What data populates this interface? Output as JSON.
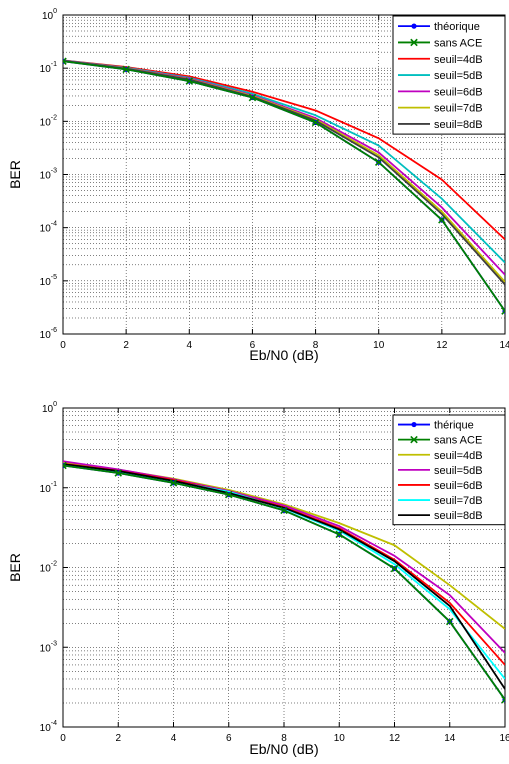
{
  "chart_data": [
    {
      "type": "line",
      "xlabel": "Eb/N0 (dB)",
      "ylabel": "BER",
      "xlim": [
        0,
        14
      ],
      "ylim": [
        1e-06,
        1
      ],
      "yscale": "log",
      "grid": true,
      "legend_position": "top-right",
      "x_ticks": [
        "0",
        "2",
        "4",
        "6",
        "8",
        "10",
        "12",
        "14"
      ],
      "y_ticks": [
        {
          "base": "10",
          "exp": "-6"
        },
        {
          "base": "10",
          "exp": "-5"
        },
        {
          "base": "10",
          "exp": "-4"
        },
        {
          "base": "10",
          "exp": "-3"
        },
        {
          "base": "10",
          "exp": "-2"
        },
        {
          "base": "10",
          "exp": "-1"
        },
        {
          "base": "10",
          "exp": "0"
        }
      ],
      "x": [
        0,
        2,
        4,
        6,
        8,
        10,
        12,
        14
      ],
      "series": [
        {
          "name": "théorique",
          "color": "#0000ff",
          "marker": "dot",
          "values": [
            0.135,
            0.095,
            0.057,
            0.028,
            0.0095,
            0.0017,
            0.00014,
            2.7e-06
          ]
        },
        {
          "name": "sans ACE",
          "color": "#008000",
          "marker": "x",
          "values": [
            0.135,
            0.095,
            0.057,
            0.028,
            0.0095,
            0.0017,
            0.00014,
            2.7e-06
          ]
        },
        {
          "name": "seuil=4dB",
          "color": "#ff0000",
          "marker": "none",
          "values": [
            0.14,
            0.105,
            0.07,
            0.036,
            0.016,
            0.0048,
            0.0008,
            6e-05
          ]
        },
        {
          "name": "seuil=5dB",
          "color": "#00bfbf",
          "marker": "none",
          "values": [
            0.14,
            0.102,
            0.066,
            0.033,
            0.013,
            0.0035,
            0.00035,
            2.2e-05
          ]
        },
        {
          "name": "seuil=6dB",
          "color": "#bf00bf",
          "marker": "none",
          "values": [
            0.139,
            0.1,
            0.064,
            0.031,
            0.0115,
            0.0026,
            0.00024,
            1.3e-05
          ]
        },
        {
          "name": "seuil=7dB",
          "color": "#bfbf00",
          "marker": "none",
          "values": [
            0.138,
            0.099,
            0.062,
            0.03,
            0.0108,
            0.0023,
            0.0002,
            9.5e-06
          ]
        },
        {
          "name": "seuil=8dB",
          "color": "#404040",
          "marker": "none",
          "values": [
            0.138,
            0.098,
            0.061,
            0.029,
            0.0103,
            0.0021,
            0.00018,
            8.5e-06
          ]
        }
      ]
    },
    {
      "type": "line",
      "xlabel": "Eb/N0 (dB)",
      "ylabel": "BER",
      "xlim": [
        0,
        16
      ],
      "ylim": [
        0.0001,
        1
      ],
      "yscale": "log",
      "grid": true,
      "legend_position": "top-right",
      "x_ticks": [
        "0",
        "2",
        "4",
        "6",
        "8",
        "10",
        "12",
        "14",
        "16"
      ],
      "y_ticks": [
        {
          "base": "10",
          "exp": "-4"
        },
        {
          "base": "10",
          "exp": "-3"
        },
        {
          "base": "10",
          "exp": "-2"
        },
        {
          "base": "10",
          "exp": "-1"
        },
        {
          "base": "10",
          "exp": "0"
        }
      ],
      "x": [
        0,
        2,
        4,
        6,
        8,
        10,
        12,
        14,
        16
      ],
      "series": [
        {
          "name": "thérique",
          "color": "#0000ff",
          "marker": "dot",
          "values": [
            0.19,
            0.153,
            0.115,
            0.082,
            0.052,
            0.026,
            0.0097,
            0.0021,
            0.00022
          ]
        },
        {
          "name": "sans ACE",
          "color": "#008000",
          "marker": "x",
          "values": [
            0.19,
            0.153,
            0.115,
            0.082,
            0.052,
            0.026,
            0.0097,
            0.0021,
            0.00022
          ]
        },
        {
          "name": "seuil=4dB",
          "color": "#bfbf00",
          "marker": "none",
          "values": [
            0.205,
            0.168,
            0.13,
            0.094,
            0.062,
            0.036,
            0.019,
            0.006,
            0.0017
          ]
        },
        {
          "name": "seuil=5dB",
          "color": "#bf00bf",
          "marker": "none",
          "values": [
            0.215,
            0.17,
            0.128,
            0.091,
            0.06,
            0.033,
            0.014,
            0.0045,
            0.00085
          ]
        },
        {
          "name": "seuil=6dB",
          "color": "#ff0000",
          "marker": "none",
          "values": [
            0.2,
            0.163,
            0.125,
            0.088,
            0.057,
            0.031,
            0.0125,
            0.0036,
            0.0006
          ]
        },
        {
          "name": "seuil=7dB",
          "color": "#00ffff",
          "marker": "none",
          "values": [
            0.195,
            0.16,
            0.12,
            0.089,
            0.055,
            0.029,
            0.011,
            0.003,
            0.0004
          ]
        },
        {
          "name": "seuil=8dB",
          "color": "#000000",
          "marker": "none",
          "values": [
            0.198,
            0.162,
            0.122,
            0.086,
            0.056,
            0.03,
            0.012,
            0.0033,
            0.0003
          ]
        }
      ]
    }
  ]
}
